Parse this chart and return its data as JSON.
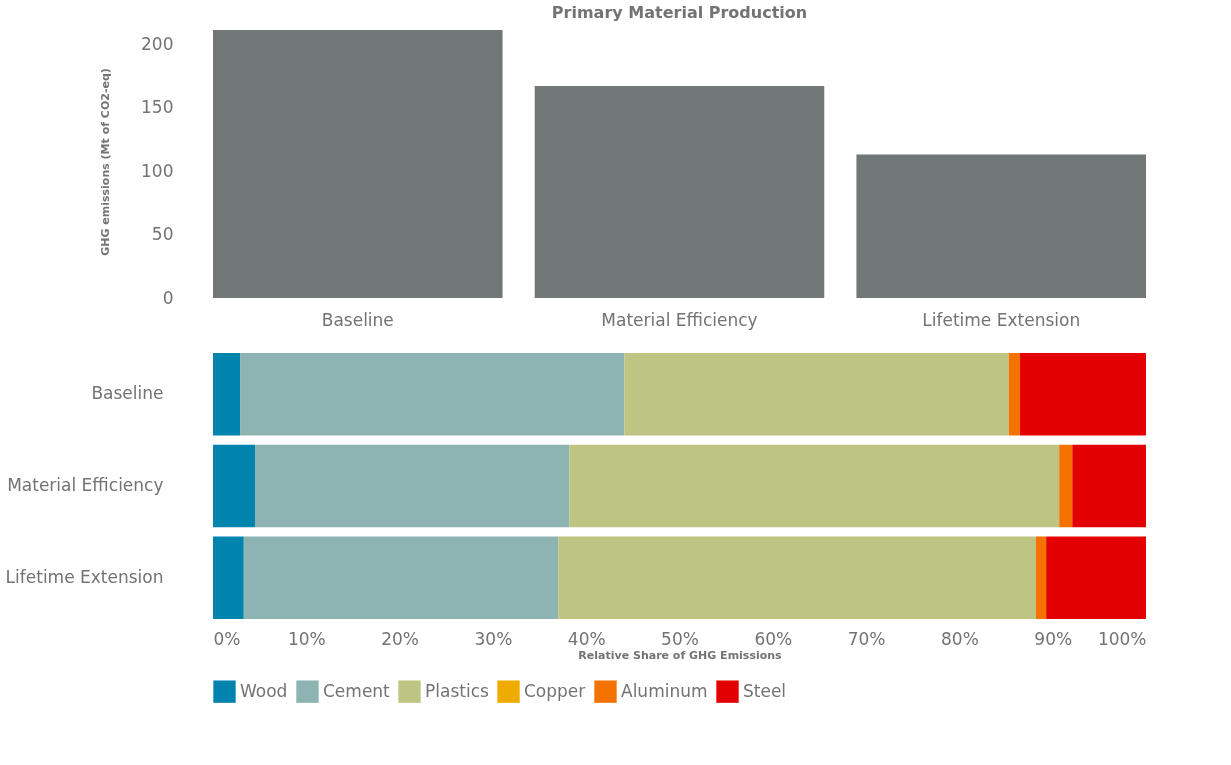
{
  "chart_data": [
    {
      "type": "bar",
      "title": "Primary Material Production",
      "ylabel": "GHG emissions (Mt of CO2-eq)",
      "categories": [
        "Baseline",
        "Material Efficiency",
        "Lifetime Extension"
      ],
      "values": [
        211,
        167,
        113
      ],
      "color": "#717777",
      "ylim": [
        0,
        215
      ],
      "yticks": [
        0,
        50,
        100,
        150,
        200
      ],
      "grid": false,
      "legend": false
    },
    {
      "type": "bar",
      "orientation": "horizontal",
      "stacked": true,
      "xlabel": "Relative Share of GHG Emissions",
      "categories": [
        "Baseline",
        "Material Efficiency",
        "Lifetime Extension"
      ],
      "xlim": [
        0,
        100
      ],
      "xticks": [
        {
          "value": 0,
          "label": "0%"
        },
        {
          "value": 10,
          "label": "10%"
        },
        {
          "value": 20,
          "label": "20%"
        },
        {
          "value": 30,
          "label": "30%"
        },
        {
          "value": 40,
          "label": "40%"
        },
        {
          "value": 50,
          "label": "50%"
        },
        {
          "value": 60,
          "label": "60%"
        },
        {
          "value": 70,
          "label": "70%"
        },
        {
          "value": 80,
          "label": "80%"
        },
        {
          "value": 90,
          "label": "90%"
        },
        {
          "value": 100,
          "label": "100%"
        }
      ],
      "grid": false,
      "legend": "bottom",
      "series": [
        {
          "name": "Wood",
          "color": "#0083ad",
          "values": [
            2.9,
            4.5,
            3.3
          ]
        },
        {
          "name": "Cement",
          "color": "#8db3b3",
          "values": [
            41.2,
            33.7,
            33.7
          ]
        },
        {
          "name": "Plastics",
          "color": "#bec582",
          "values": [
            41.2,
            52.5,
            51.2
          ]
        },
        {
          "name": "Copper",
          "color": "#f0ab00",
          "values": [
            0,
            0,
            0
          ]
        },
        {
          "name": "Aluminum",
          "color": "#f37200",
          "values": [
            1.2,
            1.4,
            1.1
          ]
        },
        {
          "name": "Steel",
          "color": "#e30000",
          "values": [
            13.5,
            7.9,
            10.7
          ]
        }
      ]
    }
  ]
}
